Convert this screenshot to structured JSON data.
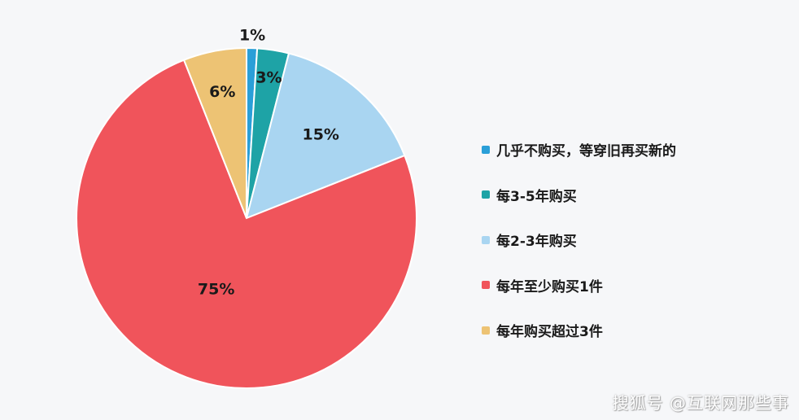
{
  "chart_data": {
    "type": "pie",
    "start": "top",
    "direction": "clockwise",
    "slices": [
      {
        "label": "几乎不购买，等穿旧再买新的",
        "value": 1,
        "data_label": "1%",
        "color": "#2a9fd8"
      },
      {
        "label": "每3-5年购买",
        "value": 3,
        "data_label": "3%",
        "color": "#1ea3a6"
      },
      {
        "label": "每2-3年购买",
        "value": 15,
        "data_label": "15%",
        "color": "#a9d5f1"
      },
      {
        "label": "每年至少购买1件",
        "value": 75,
        "data_label": "75%",
        "color": "#f0545b"
      },
      {
        "label": "每年购买超过3件",
        "value": 6,
        "data_label": "6%",
        "color": "#edc374"
      }
    ],
    "legend_placement": "right"
  },
  "watermark": "搜狐号 @互联网那些事"
}
